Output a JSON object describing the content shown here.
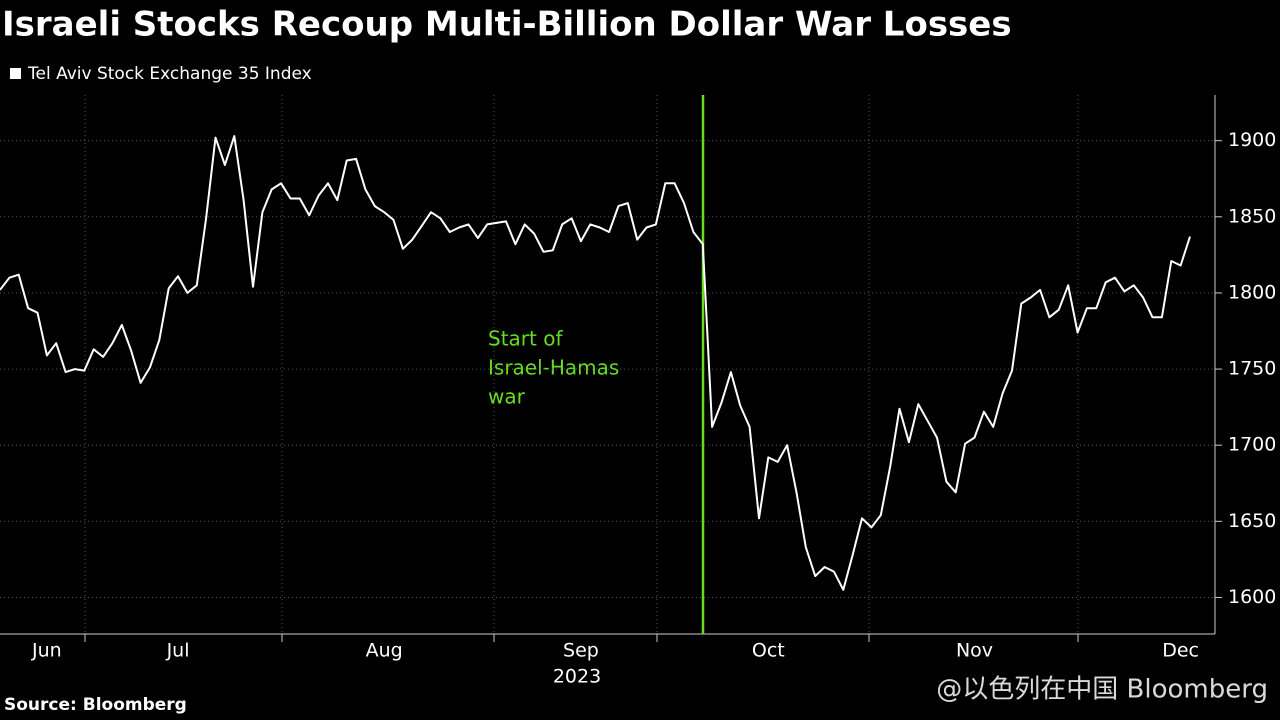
{
  "chart_data": {
    "type": "line",
    "title": "Israeli Stocks Recoup Multi-Billion Dollar War Losses",
    "x_label": "2023",
    "source": "Source: Bloomberg",
    "watermark": "@以色列在中国 Bloomberg",
    "annotation": [
      "Start of",
      "Israel-Hamas",
      "war"
    ],
    "annotation_color": "#66dd22",
    "categories": [
      null,
      null,
      null,
      null,
      null,
      "Jun",
      null,
      null,
      null,
      null,
      null,
      null,
      null,
      null,
      null,
      null,
      null,
      null,
      null,
      "Jul",
      null,
      null,
      null,
      null,
      null,
      null,
      null,
      null,
      null,
      null,
      null,
      null,
      null,
      null,
      null,
      null,
      null,
      null,
      null,
      null,
      null,
      "Aug",
      null,
      null,
      null,
      null,
      null,
      null,
      null,
      null,
      null,
      null,
      null,
      null,
      null,
      null,
      null,
      null,
      null,
      null,
      null,
      null,
      "Sep",
      null,
      null,
      null,
      null,
      null,
      null,
      null,
      null,
      null,
      null,
      null,
      null,
      null,
      null,
      null,
      null,
      null,
      null,
      null,
      "Oct",
      null,
      null,
      null,
      null,
      null,
      null,
      null,
      null,
      null,
      null,
      null,
      null,
      null,
      null,
      null,
      null,
      null,
      null,
      null,
      null,
      null,
      "Nov",
      null,
      null,
      null,
      null,
      null,
      null,
      null,
      null,
      null,
      null,
      null,
      null,
      null,
      null,
      null,
      null,
      null,
      null,
      null,
      null,
      null,
      "Dec",
      null
    ],
    "series": [
      {
        "name": "Tel Aviv Stock Exchange 35 Index",
        "color": "#ffffff",
        "values": [
          1802,
          1810,
          1812,
          1790,
          1787,
          1759,
          1767,
          1748,
          1750,
          1749,
          1763,
          1758,
          1767,
          1779,
          1762,
          1741,
          1751,
          1769,
          1803,
          1811,
          1800,
          1805,
          1849,
          1902,
          1884,
          1903,
          1861,
          1804,
          1853,
          1868,
          1872,
          1862,
          1862,
          1851,
          1864,
          1872,
          1861,
          1887,
          1888,
          1868,
          1857,
          1853,
          1848,
          1829,
          1835,
          1844,
          1853,
          1849,
          1840,
          1843,
          1845,
          1836,
          1845,
          1846,
          1847,
          1832,
          1845,
          1839,
          1827,
          1828,
          1845,
          1849,
          1834,
          1845,
          1843,
          1840,
          1857,
          1859,
          1835,
          1843,
          1845,
          1872,
          1872,
          1859,
          1840,
          1832,
          1712,
          1728,
          1748,
          1726,
          1712,
          1652,
          1692,
          1689,
          1700,
          1669,
          1633,
          1614,
          1620,
          1617,
          1605,
          1628,
          1652,
          1646,
          1654,
          1686,
          1724,
          1702,
          1727,
          1716,
          1705,
          1676,
          1669,
          1701,
          1705,
          1722,
          1712,
          1734,
          1749,
          1793,
          1797,
          1802,
          1784,
          1789,
          1805,
          1774,
          1790,
          1790,
          1807,
          1810,
          1801,
          1805,
          1797,
          1784,
          1784,
          1821,
          1818,
          1837
        ]
      }
    ],
    "ylim": [
      1576,
      1930
    ],
    "yticks": [
      1600,
      1650,
      1700,
      1750,
      1800,
      1850,
      1900
    ],
    "grid": true
  }
}
